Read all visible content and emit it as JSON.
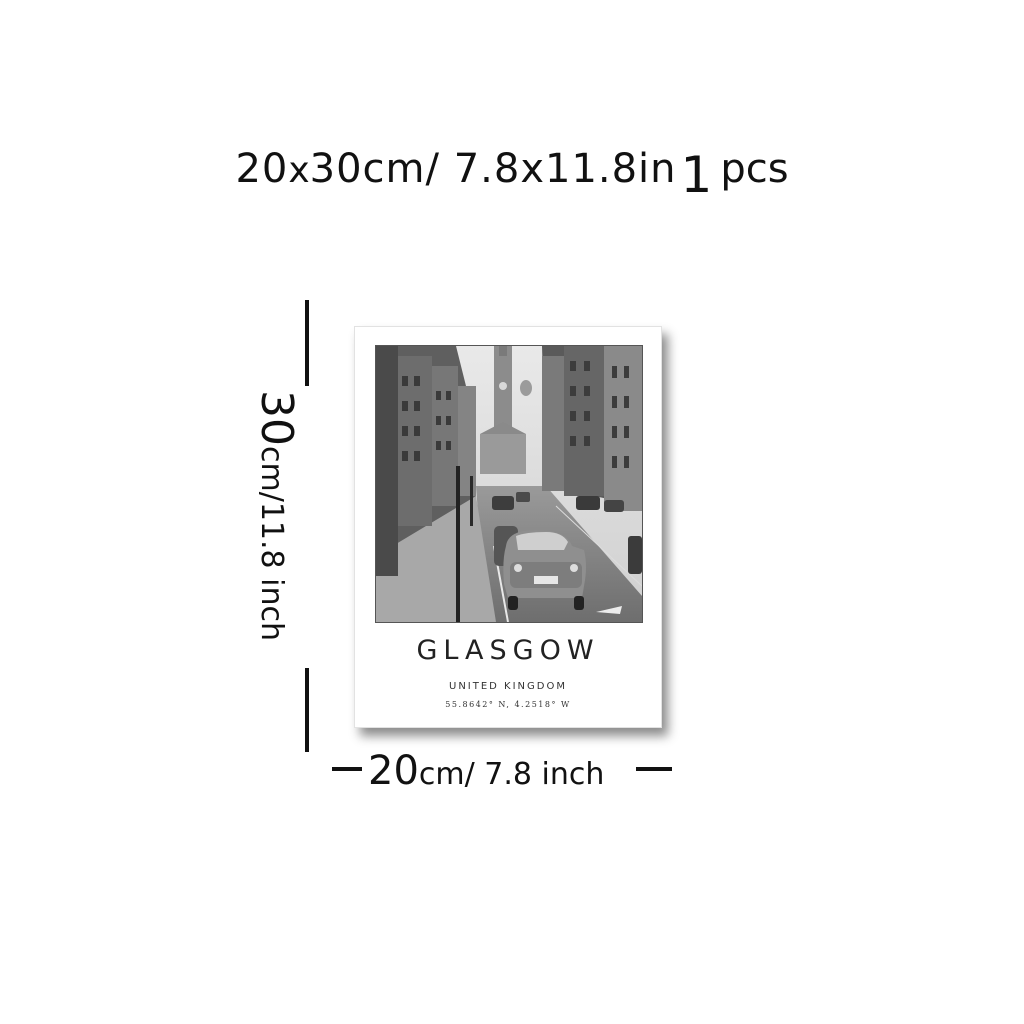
{
  "header": {
    "width_cm": "20",
    "x_sep": "x",
    "height_and_rest": "30cm/ 7.8x11.8in",
    "quantity": "1",
    "quantity_unit": "pcs"
  },
  "dimension_vertical": {
    "number": "30",
    "unit_text": "cm/11.8 inch"
  },
  "dimension_horizontal": {
    "number": "20",
    "unit_text": "cm/ 7.8 inch"
  },
  "poster": {
    "city": "GLASGOW",
    "country": "UNITED KINGDOM",
    "coordinates": "55.8642° N, 4.2518° W",
    "photo_subject": "black-and-white-street-scene"
  }
}
